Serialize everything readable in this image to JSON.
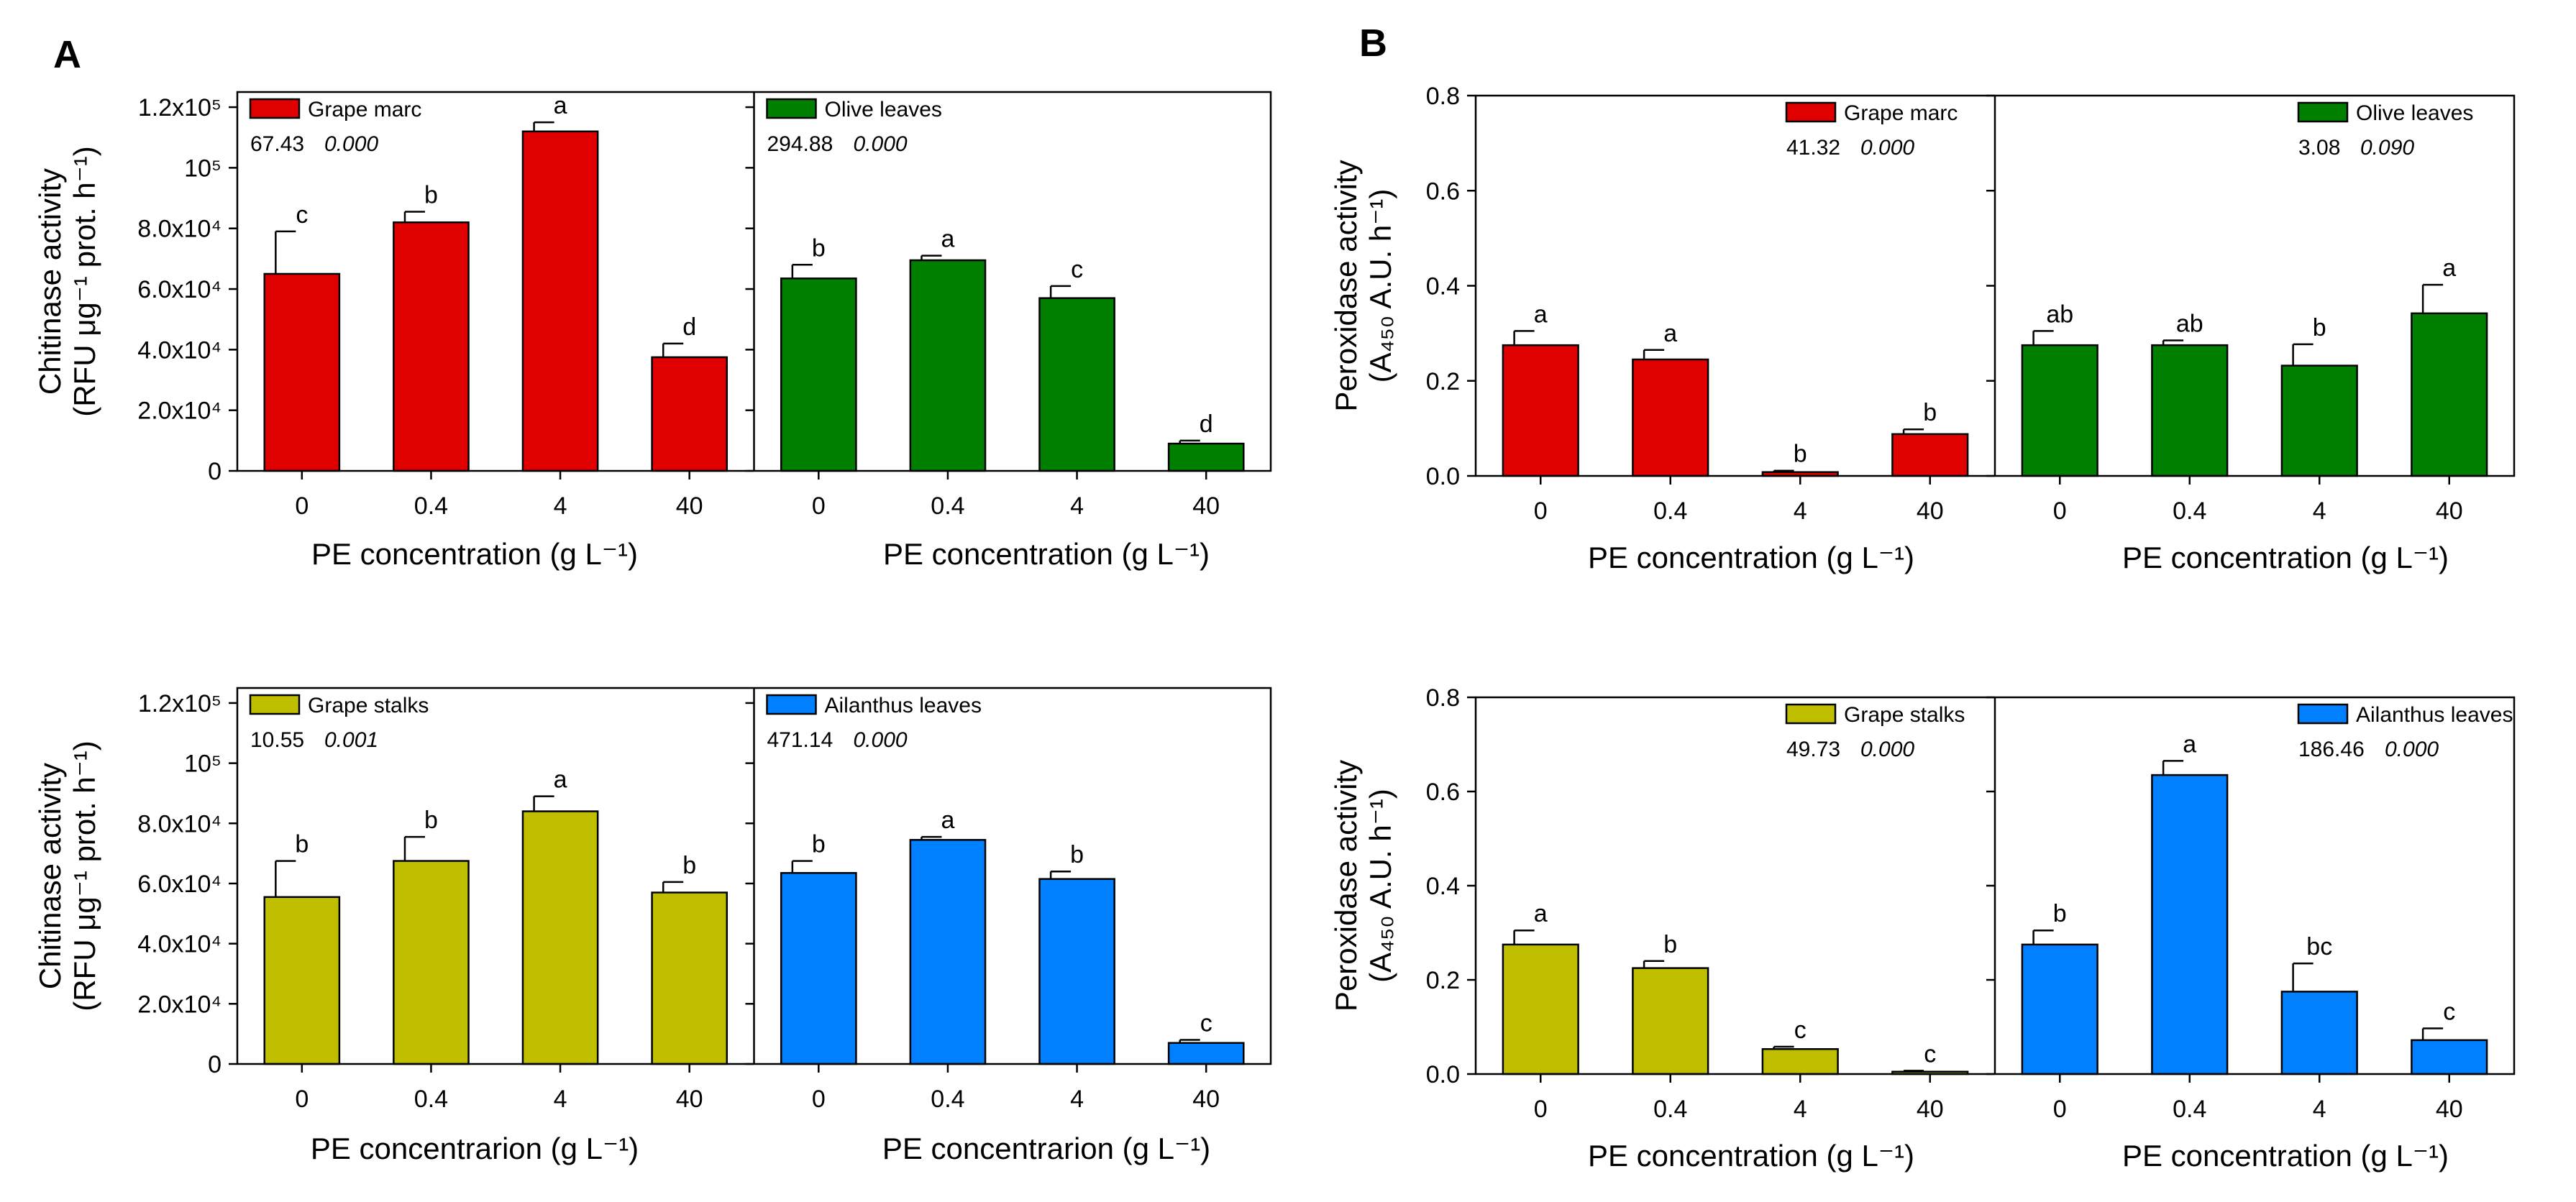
{
  "panel_labels": [
    "A",
    "B"
  ],
  "chart_data": [
    {
      "id": "chitinase-top",
      "type": "bar",
      "ylabel_lines": [
        "Chitinase activity",
        "(RFU μg⁻¹ prot. h⁻¹)"
      ],
      "xlabel": "PE concentration (g L⁻¹)",
      "ylim": [
        0,
        125000
      ],
      "yticks": [
        0,
        20000,
        40000,
        60000,
        80000,
        100000,
        120000
      ],
      "ytick_labels": [
        "0",
        "2.0x10⁴",
        "4.0x10⁴",
        "6.0x10⁴",
        "8.0x10⁴",
        "10⁵",
        "1.2x10⁵"
      ],
      "categories": [
        "0",
        "0.4",
        "4",
        "40"
      ],
      "legend_position": "top-left",
      "series": [
        {
          "name": "Grape marc",
          "color": "#e00000",
          "F": "67.43",
          "p": "0.000",
          "values": [
            65000,
            82000,
            112000,
            37500
          ],
          "errors": [
            14000,
            3500,
            3000,
            4500
          ],
          "letters": [
            "c",
            "b",
            "a",
            "d"
          ]
        },
        {
          "name": "Olive leaves",
          "color": "#007f00",
          "F": "294.88",
          "p": "0.000",
          "values": [
            63500,
            69500,
            57000,
            9000
          ],
          "errors": [
            4500,
            1500,
            4000,
            1000
          ],
          "letters": [
            "b",
            "a",
            "c",
            "d"
          ]
        }
      ]
    },
    {
      "id": "chitinase-bottom",
      "type": "bar",
      "ylabel_lines": [
        "Chitinase activity",
        "(RFU μg⁻¹ prot. h⁻¹)"
      ],
      "xlabel": "PE concentrarion (g L⁻¹)",
      "ylim": [
        0,
        125000
      ],
      "yticks": [
        0,
        20000,
        40000,
        60000,
        80000,
        100000,
        120000
      ],
      "ytick_labels": [
        "0",
        "2.0x10⁴",
        "4.0x10⁴",
        "6.0x10⁴",
        "8.0x10⁴",
        "10⁵",
        "1.2x10⁵"
      ],
      "categories": [
        "0",
        "0.4",
        "4",
        "40"
      ],
      "legend_position": "top-left",
      "series": [
        {
          "name": "Grape stalks",
          "color": "#bfbf00",
          "F": "10.55",
          "p": "0.001",
          "values": [
            55500,
            67500,
            84000,
            57000
          ],
          "errors": [
            12000,
            8000,
            5000,
            3500
          ],
          "letters": [
            "b",
            "b",
            "a",
            "b"
          ]
        },
        {
          "name": "Ailanthus leaves",
          "color": "#0080ff",
          "F": "471.14",
          "p": "0.000",
          "values": [
            63500,
            74500,
            61500,
            7000
          ],
          "errors": [
            4000,
            1000,
            2500,
            1000
          ],
          "letters": [
            "b",
            "a",
            "b",
            "c"
          ]
        }
      ]
    },
    {
      "id": "peroxidase-top",
      "type": "bar",
      "ylabel_lines": [
        "Peroxidase activity",
        "(A₄₅₀ A.U. h⁻¹)"
      ],
      "xlabel": "PE concentration (g L⁻¹)",
      "ylim": [
        0,
        0.8
      ],
      "yticks": [
        0,
        0.2,
        0.4,
        0.6,
        0.8
      ],
      "ytick_labels": [
        "0.0",
        "0.2",
        "0.4",
        "0.6",
        "0.8"
      ],
      "categories": [
        "0",
        "0.4",
        "4",
        "40"
      ],
      "legend_position": "top-right",
      "series": [
        {
          "name": "Grape marc",
          "color": "#e00000",
          "F": "41.32",
          "p": "0.000",
          "values": [
            0.275,
            0.245,
            0.008,
            0.088
          ],
          "errors": [
            0.03,
            0.02,
            0.003,
            0.01
          ],
          "letters": [
            "a",
            "a",
            "b",
            "b"
          ]
        },
        {
          "name": "Olive leaves",
          "color": "#007f00",
          "F": "3.08",
          "p": "0.090",
          "values": [
            0.275,
            0.275,
            0.232,
            0.342
          ],
          "errors": [
            0.03,
            0.01,
            0.045,
            0.06
          ],
          "letters": [
            "ab",
            "ab",
            "b",
            "a"
          ]
        }
      ]
    },
    {
      "id": "peroxidase-bottom",
      "type": "bar",
      "ylabel_lines": [
        "Peroxidase activity",
        "(A₄₅₀ A.U. h⁻¹)"
      ],
      "xlabel": "PE concentration (g L⁻¹)",
      "ylim": [
        0,
        0.8
      ],
      "yticks": [
        0,
        0.2,
        0.4,
        0.6,
        0.8
      ],
      "ytick_labels": [
        "0.0",
        "0.2",
        "0.4",
        "0.6",
        "0.8"
      ],
      "categories": [
        "0",
        "0.4",
        "4",
        "40"
      ],
      "legend_position": "top-right",
      "series": [
        {
          "name": "Grape stalks",
          "color": "#bfbf00",
          "F": "49.73",
          "p": "0.000",
          "values": [
            0.275,
            0.225,
            0.053,
            0.005
          ],
          "errors": [
            0.03,
            0.015,
            0.005,
            0.002
          ],
          "letters": [
            "a",
            "b",
            "c",
            "c"
          ]
        },
        {
          "name": "Ailanthus leaves",
          "color": "#0080ff",
          "F": "186.46",
          "p": "0.000",
          "values": [
            0.275,
            0.635,
            0.175,
            0.072
          ],
          "errors": [
            0.03,
            0.03,
            0.06,
            0.025
          ],
          "letters": [
            "b",
            "a",
            "bc",
            "c"
          ]
        }
      ]
    }
  ]
}
